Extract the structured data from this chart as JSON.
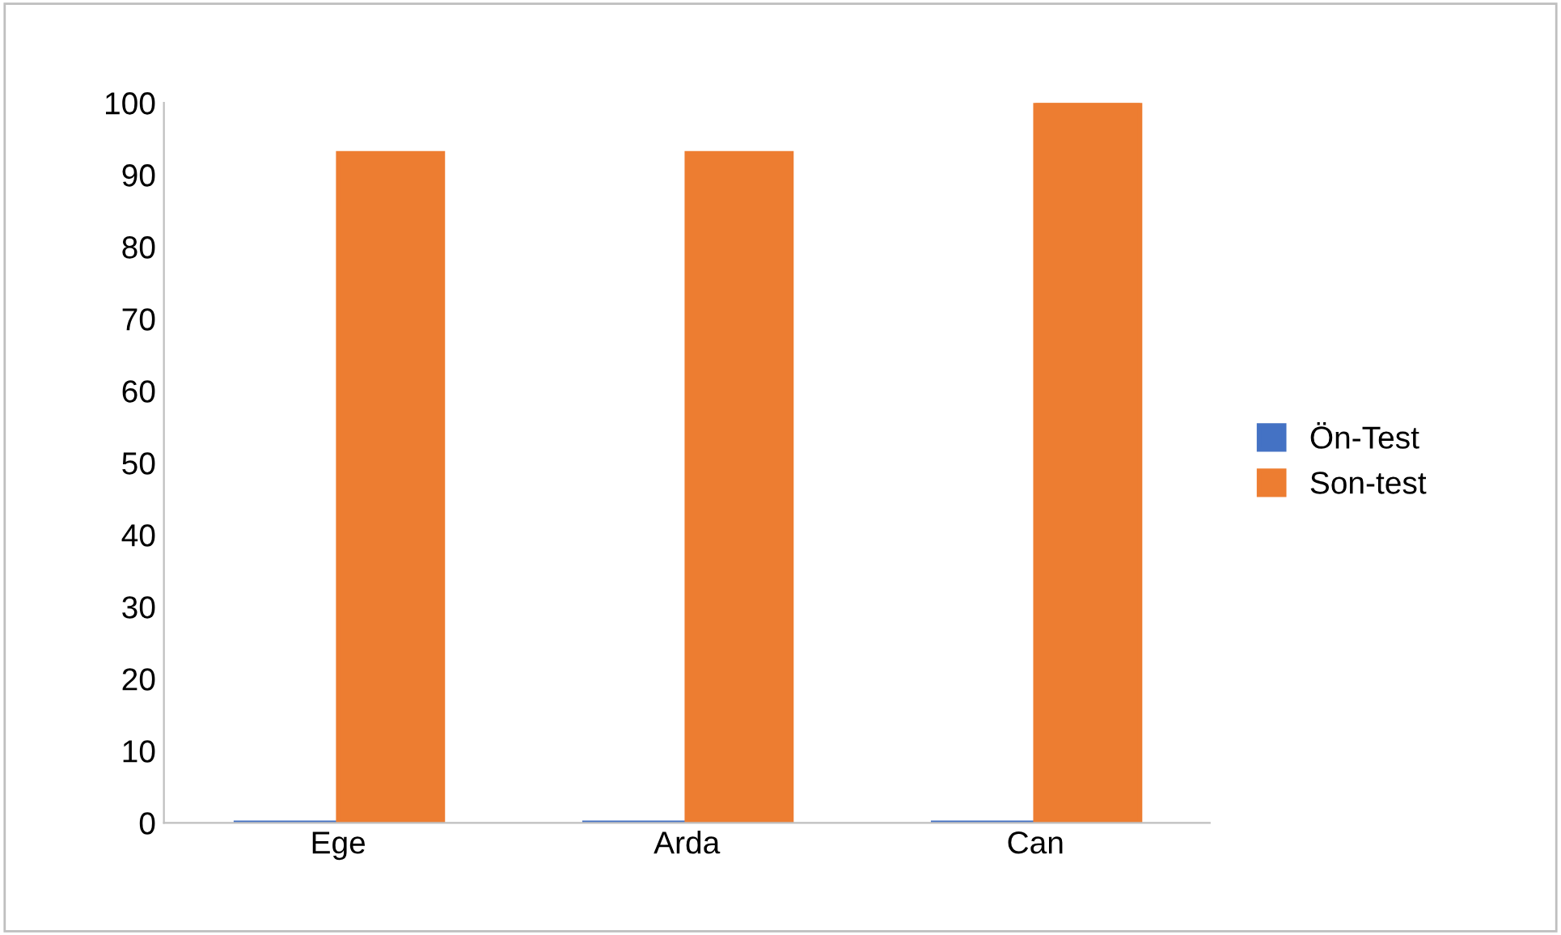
{
  "chart_data": {
    "type": "bar",
    "categories": [
      "Ege",
      "Arda",
      "Can"
    ],
    "series": [
      {
        "name": "Ön-Test",
        "color": "#4472c4",
        "values": [
          0,
          0,
          0
        ]
      },
      {
        "name": "Son-test",
        "color": "#ed7d31",
        "values": [
          93,
          93,
          100
        ]
      }
    ],
    "ylim": [
      0,
      100
    ],
    "yticks": [
      0,
      10,
      20,
      30,
      40,
      50,
      60,
      70,
      80,
      90,
      100
    ],
    "grid": false,
    "legend": "right"
  }
}
